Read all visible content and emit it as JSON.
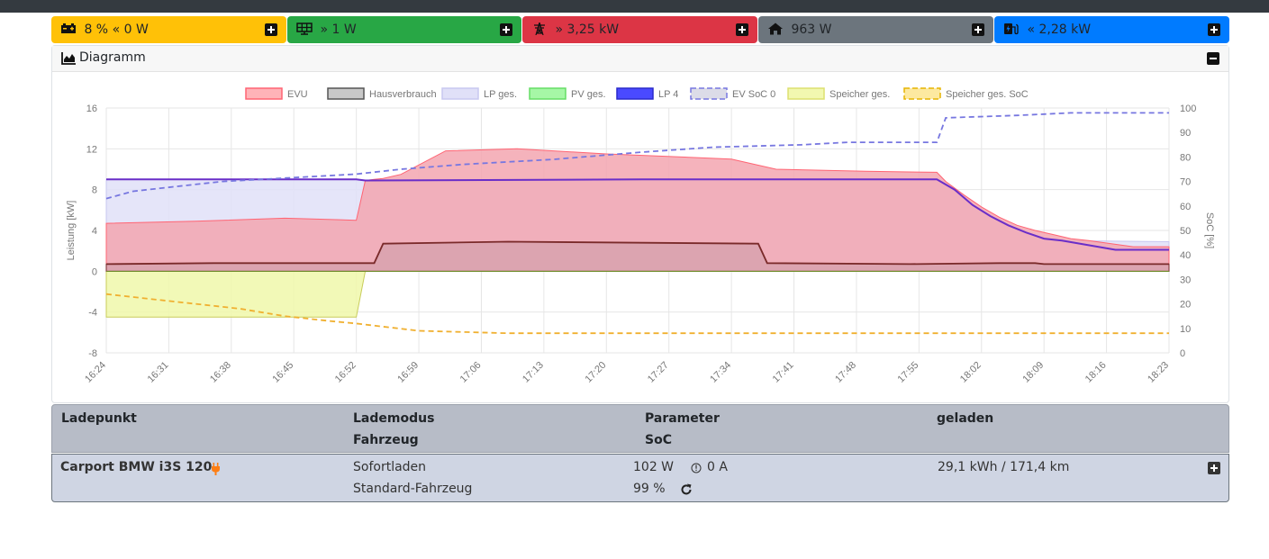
{
  "status_tiles": [
    {
      "name": "battery",
      "icon": "battery-icon",
      "arrow": "«",
      "value": "8 %",
      "power": "0 W",
      "color": "#ffc107",
      "text_color": "#212529"
    },
    {
      "name": "pv",
      "icon": "solar-panel-icon",
      "arrow": "»",
      "value": "",
      "power": "1 W",
      "color": "#28a745",
      "text_color": "#212529"
    },
    {
      "name": "grid",
      "icon": "power-tower-icon",
      "arrow": "»",
      "value": "",
      "power": "3,25 kW",
      "color": "#dc3545",
      "text_color": "#212529"
    },
    {
      "name": "house",
      "icon": "house-icon",
      "arrow": "",
      "value": "",
      "power": "963 W",
      "color": "#6c757d",
      "text_color": "#212529"
    },
    {
      "name": "charging",
      "icon": "charging-station-icon",
      "arrow": "«",
      "value": "",
      "power": "2,28 kW",
      "color": "#007bff",
      "text_color": "#212529"
    }
  ],
  "diagram": {
    "title": "Diagramm"
  },
  "chart_data": {
    "type": "area",
    "legend": [
      {
        "name": "EVU",
        "fill": "#ffb3b8",
        "stroke": "#ff6473",
        "dashed": false
      },
      {
        "name": "Hausverbrauch",
        "fill": "#c8c8c8",
        "stroke": "#555555",
        "dashed": false
      },
      {
        "name": "LP ges.",
        "fill": "#e0e0f8",
        "stroke": "#c8c8f0",
        "dashed": false
      },
      {
        "name": "PV ges.",
        "fill": "#a6f7a6",
        "stroke": "#66dd66",
        "dashed": false
      },
      {
        "name": "LP 4",
        "fill": "#4a4aff",
        "stroke": "#2a2acc",
        "dashed": false
      },
      {
        "name": "EV SoC 0",
        "fill": "#dcdce8",
        "stroke": "#7777e0",
        "dashed": true
      },
      {
        "name": "Speicher ges.",
        "fill": "#f2f8b0",
        "stroke": "#dde070",
        "dashed": false
      },
      {
        "name": "Speicher ges. SoC",
        "fill": "#fde9a0",
        "stroke": "#e6b400",
        "dashed": true
      }
    ],
    "x_labels": [
      "16:24",
      "16:31",
      "16:38",
      "16:45",
      "16:52",
      "16:59",
      "17:06",
      "17:13",
      "17:20",
      "17:27",
      "17:34",
      "17:41",
      "17:48",
      "17:55",
      "18:02",
      "18:09",
      "18:16",
      "18:23"
    ],
    "x_range_min": [
      0,
      119
    ],
    "y_left": {
      "label": "Leistung [kW]",
      "ticks": [
        16,
        12,
        8,
        4,
        0,
        -4,
        -8
      ],
      "range": [
        -8,
        16
      ]
    },
    "y_right": {
      "label": "SoC [%]",
      "ticks": [
        100,
        90,
        80,
        70,
        60,
        50,
        40,
        30,
        20,
        10,
        0
      ],
      "range": [
        0,
        100
      ]
    },
    "series_points": {
      "evu_kw": [
        [
          0,
          4.7
        ],
        [
          10,
          4.9
        ],
        [
          20,
          5.2
        ],
        [
          28,
          5.0
        ],
        [
          29,
          8.9
        ],
        [
          30,
          9.0
        ],
        [
          31,
          9.1
        ],
        [
          33,
          9.5
        ],
        [
          38,
          11.8
        ],
        [
          46,
          12.0
        ],
        [
          56,
          11.5
        ],
        [
          70,
          11.0
        ],
        [
          75,
          10.0
        ],
        [
          85,
          9.8
        ],
        [
          93,
          9.7
        ],
        [
          94,
          8.8
        ],
        [
          96,
          7.5
        ],
        [
          98,
          6.3
        ],
        [
          100,
          5.3
        ],
        [
          102,
          4.5
        ],
        [
          104,
          4.0
        ],
        [
          106,
          3.6
        ],
        [
          108,
          3.2
        ],
        [
          110,
          3.0
        ],
        [
          115,
          2.4
        ],
        [
          119,
          2.4
        ]
      ],
      "house_kw": [
        [
          0,
          0.7
        ],
        [
          12,
          0.8
        ],
        [
          30,
          0.8
        ],
        [
          31,
          2.7
        ],
        [
          45,
          2.9
        ],
        [
          73,
          2.7
        ],
        [
          74,
          0.8
        ],
        [
          90,
          0.7
        ],
        [
          100,
          0.8
        ],
        [
          104,
          0.8
        ],
        [
          105,
          0.7
        ],
        [
          119,
          0.7
        ]
      ],
      "lp4_kw": [
        [
          0,
          9.0
        ],
        [
          28,
          9.0
        ],
        [
          29,
          8.9
        ],
        [
          60,
          9.0
        ],
        [
          93,
          9.0
        ],
        [
          95,
          8.0
        ],
        [
          97,
          6.5
        ],
        [
          99,
          5.4
        ],
        [
          101,
          4.5
        ],
        [
          103,
          3.8
        ],
        [
          105,
          3.2
        ],
        [
          107,
          3.0
        ],
        [
          113,
          2.1
        ],
        [
          119,
          2.1
        ]
      ],
      "lp_total_kw": [
        [
          0,
          9.0
        ],
        [
          28,
          9.0
        ],
        [
          29,
          8.9
        ],
        [
          93,
          9.0
        ],
        [
          95,
          8.0
        ],
        [
          97,
          6.5
        ],
        [
          99,
          5.4
        ],
        [
          101,
          4.5
        ],
        [
          103,
          3.8
        ],
        [
          105,
          3.2
        ],
        [
          107,
          3.0
        ],
        [
          119,
          2.9
        ]
      ],
      "storage_kw": [
        [
          0,
          -4.5
        ],
        [
          28,
          -4.5
        ],
        [
          29,
          0
        ],
        [
          119,
          0
        ]
      ],
      "ev_soc_pct": [
        [
          0,
          63
        ],
        [
          3,
          66
        ],
        [
          8,
          68
        ],
        [
          13,
          70
        ],
        [
          18,
          71
        ],
        [
          23,
          72
        ],
        [
          28,
          73
        ],
        [
          33,
          75
        ],
        [
          40,
          77
        ],
        [
          50,
          79
        ],
        [
          60,
          82
        ],
        [
          68,
          84
        ],
        [
          78,
          85
        ],
        [
          83,
          86
        ],
        [
          93,
          86
        ],
        [
          94,
          96
        ],
        [
          102,
          97
        ],
        [
          108,
          98
        ],
        [
          119,
          98
        ]
      ],
      "storage_soc_pct": [
        [
          0,
          24
        ],
        [
          5,
          22
        ],
        [
          10,
          20
        ],
        [
          15,
          18
        ],
        [
          20,
          15
        ],
        [
          25,
          13
        ],
        [
          28,
          12
        ],
        [
          35,
          9
        ],
        [
          45,
          8
        ],
        [
          119,
          8
        ]
      ]
    }
  },
  "lp_table": {
    "head": {
      "col1": "Ladepunkt",
      "col2a": "Lademodus",
      "col2b": "Fahrzeug",
      "col3a": "Parameter",
      "col3b": "SoC",
      "col4": "geladen"
    },
    "rows": [
      {
        "name": "Carport BMW i3S 120",
        "mode": "Sofortladen",
        "vehicle": "Standard-Fahrzeug",
        "power": "102 W",
        "current": "0 A",
        "soc": "99 %",
        "charged": "29,1 kWh / 171,4 km"
      }
    ]
  }
}
